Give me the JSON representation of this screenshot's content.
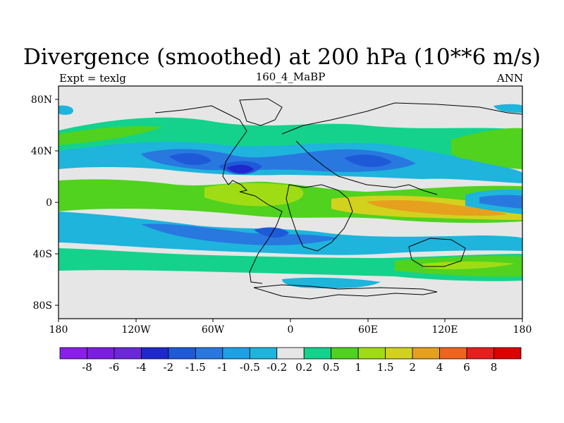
{
  "map": {
    "title": "Divergence (smoothed) at 200 hPa (10**6 m/s)",
    "left_label": "Expt = texlg",
    "center_label": "160_4_MaBP",
    "right_label": "ANN",
    "x_ticks": [
      "180",
      "120W",
      "60W",
      "0",
      "60E",
      "120E",
      "180"
    ],
    "y_ticks": [
      "80N",
      "40N",
      "0",
      "40S",
      "80S"
    ],
    "background_color": "#e6e6e6"
  },
  "colorbar": {
    "labels": [
      "-8",
      "-6",
      "-4",
      "-2",
      "-1.5",
      "-1",
      "-0.5",
      "-0.2",
      "0.2",
      "0.5",
      "1",
      "1.5",
      "2",
      "4",
      "6",
      "8"
    ],
    "colors": [
      "#8a1eeb",
      "#7a1ee0",
      "#6a28d8",
      "#1e28cc",
      "#1e5ad8",
      "#2878e0",
      "#1ea0e6",
      "#1eb4dc",
      "#e6e6e6",
      "#14d28c",
      "#50d21e",
      "#a0dc14",
      "#d2d21e",
      "#e6a01e",
      "#f0641e",
      "#e61e1e",
      "#dc0000"
    ]
  }
}
